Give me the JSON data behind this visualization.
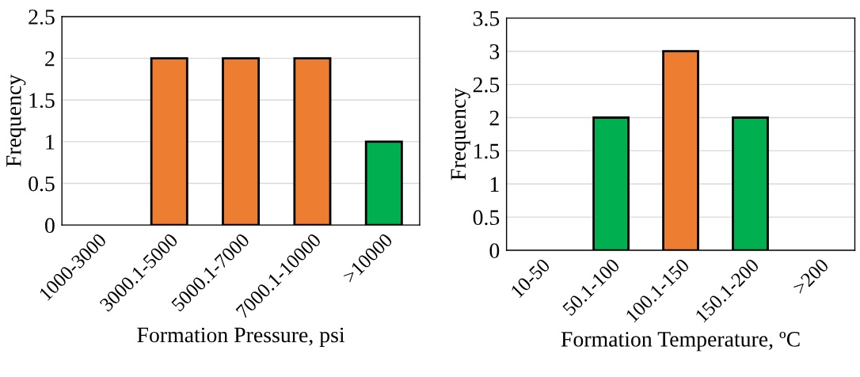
{
  "chart_data": [
    {
      "type": "bar",
      "xlabel": "Formation Pressure, psi",
      "ylabel": "Frequency",
      "categories": [
        "1000-3000",
        "3000.1-5000",
        "5000.1-7000",
        "7000.1-10000",
        ">10000"
      ],
      "values": [
        0,
        2,
        2,
        2,
        1
      ],
      "colors": [
        "#ed7d31",
        "#ed7d31",
        "#ed7d31",
        "#ed7d31",
        "#00b050"
      ],
      "ylim": [
        0,
        2.5
      ],
      "yticks": [
        0,
        0.5,
        1,
        1.5,
        2,
        2.5
      ],
      "grid": "y",
      "legend": false
    },
    {
      "type": "bar",
      "xlabel": "Formation Temperature, ºC",
      "ylabel": "Frequency",
      "categories": [
        "10-50",
        "50.1-100",
        "100.1-150",
        "150.1-200",
        ">200"
      ],
      "values": [
        0,
        2,
        3,
        2,
        0
      ],
      "colors": [
        "#00b050",
        "#00b050",
        "#ed7d31",
        "#00b050",
        "#00b050"
      ],
      "ylim": [
        0,
        3.5
      ],
      "yticks": [
        0,
        0.5,
        1,
        1.5,
        2,
        2.5,
        3,
        3.5
      ],
      "grid": "y",
      "legend": false
    }
  ]
}
